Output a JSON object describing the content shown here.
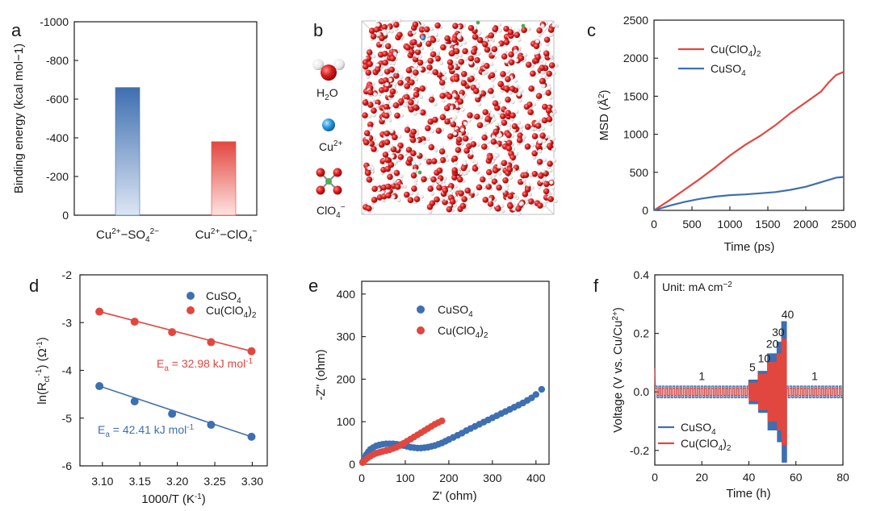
{
  "colors": {
    "blue": "#3e6fb0",
    "red": "#e2473f",
    "light_blue": "#dce6f4",
    "light_red": "#fde3e1"
  },
  "panels": {
    "a": "a",
    "b": "b",
    "c": "c",
    "d": "d",
    "e": "e",
    "f": "f"
  },
  "legend_b": {
    "h2o": "H2O",
    "cu": "Cu2+",
    "clo4": "ClO4−"
  },
  "chart_data": [
    {
      "panel": "a",
      "type": "bar",
      "categories": [
        "Cu2+−SO42−",
        "Cu2+−ClO4−"
      ],
      "values": [
        -660,
        -380
      ],
      "ylabel": "Binding energy (kcal mol−1)",
      "ylim": [
        0,
        -1000
      ],
      "yticks": [
        "0",
        "-200",
        "-400",
        "-600",
        "-800",
        "-1000"
      ],
      "tick_values": [
        0,
        -200,
        -400,
        -600,
        -800,
        -1000
      ],
      "bar_colors": [
        "#3e6fb0",
        "#e2473f"
      ]
    },
    {
      "panel": "c",
      "type": "line",
      "xlabel": "Time (ps)",
      "ylabel": "MSD (Å2)",
      "xlim": [
        0,
        2500
      ],
      "ylim": [
        0,
        2500
      ],
      "xticks": [
        0,
        500,
        1000,
        1500,
        2000,
        2500
      ],
      "yticks": [
        0,
        500,
        1000,
        1500,
        2000,
        2500
      ],
      "series": [
        {
          "name": "Cu(ClO4)2",
          "color": "#e2473f",
          "x": [
            0,
            200,
            400,
            600,
            800,
            1000,
            1200,
            1400,
            1600,
            1800,
            2000,
            2200,
            2300,
            2400,
            2500
          ],
          "y": [
            0,
            130,
            270,
            410,
            560,
            720,
            860,
            980,
            1120,
            1280,
            1420,
            1560,
            1680,
            1780,
            1820
          ]
        },
        {
          "name": "CuSO4",
          "color": "#3e6fb0",
          "x": [
            0,
            200,
            400,
            600,
            800,
            1000,
            1200,
            1400,
            1600,
            1800,
            2000,
            2200,
            2400,
            2500
          ],
          "y": [
            0,
            60,
            110,
            150,
            180,
            200,
            210,
            225,
            240,
            270,
            310,
            370,
            430,
            440
          ]
        }
      ]
    },
    {
      "panel": "d",
      "type": "scatter",
      "xlabel": "1000/T (K−1)",
      "ylabel": "ln(Rct−1) (Ω−1)",
      "xlim": [
        3.07,
        3.32
      ],
      "ylim": [
        -6,
        -2
      ],
      "xticks": [
        "3.10",
        "3.15",
        "3.20",
        "3.25",
        "3.30"
      ],
      "yticks": [
        "-2",
        "-3",
        "-4",
        "-5",
        "-6"
      ],
      "series": [
        {
          "name": "CuSO4",
          "color": "#3e6fb0",
          "x": [
            3.096,
            3.143,
            3.193,
            3.245,
            3.299
          ],
          "y": [
            -4.33,
            -4.65,
            -4.91,
            -5.14,
            -5.39
          ]
        },
        {
          "name": "Cu(ClO4)2",
          "color": "#e2473f",
          "x": [
            3.096,
            3.143,
            3.193,
            3.245,
            3.299
          ],
          "y": [
            -2.77,
            -2.98,
            -3.2,
            -3.41,
            -3.6
          ]
        }
      ],
      "annotations": [
        {
          "text": "Ea = 32.98 kJ mol−1",
          "color": "#e2473f"
        },
        {
          "text": "Ea = 42.41 kJ mol−1",
          "color": "#3e6fb0"
        }
      ]
    },
    {
      "panel": "e",
      "type": "scatter",
      "xlabel": "Z' (ohm)",
      "ylabel": "-Z'' (ohm)",
      "xlim": [
        0,
        430
      ],
      "ylim": [
        0,
        430
      ],
      "xticks": [
        0,
        100,
        200,
        300,
        400
      ],
      "yticks": [
        0,
        100,
        200,
        300,
        400
      ],
      "series": [
        {
          "name": "CuSO4",
          "color": "#3e6fb0",
          "x": [
            2,
            6,
            10,
            15,
            20,
            26,
            33,
            40,
            48,
            56,
            64,
            72,
            80,
            88,
            96,
            104,
            112,
            120,
            128,
            136,
            144,
            152,
            160,
            168,
            176,
            184,
            192,
            200,
            210,
            220,
            230,
            240,
            250,
            260,
            270,
            280,
            290,
            300,
            310,
            320,
            330,
            340,
            350,
            360,
            370,
            380,
            390,
            400,
            413
          ],
          "y": [
            5,
            14,
            22,
            29,
            35,
            39,
            43,
            45,
            47,
            48,
            48,
            48,
            47,
            46,
            44,
            42,
            40,
            39,
            38,
            38,
            39,
            40,
            42,
            44,
            47,
            50,
            54,
            58,
            63,
            68,
            73,
            79,
            84,
            89,
            94,
            99,
            104,
            109,
            114,
            119,
            124,
            129,
            134,
            139,
            144,
            150,
            156,
            164,
            176
          ]
        },
        {
          "name": "Cu(ClO4)2",
          "color": "#e2473f",
          "x": [
            2,
            8,
            14,
            20,
            27,
            34,
            41,
            48,
            56,
            64,
            72,
            80,
            88,
            96,
            104,
            112,
            120,
            128,
            136,
            144,
            152,
            160,
            168,
            176,
            184
          ],
          "y": [
            4,
            10,
            15,
            19,
            23,
            26,
            28,
            30,
            32,
            34,
            37,
            40,
            44,
            49,
            54,
            59,
            64,
            69,
            74,
            79,
            84,
            89,
            94,
            98,
            102
          ]
        }
      ]
    },
    {
      "panel": "f",
      "type": "line",
      "xlabel": "Time (h)",
      "ylabel": "Voltage (V vs. Cu/Cu2+)",
      "xlim": [
        0,
        80
      ],
      "ylim": [
        -0.25,
        0.4
      ],
      "xticks": [
        0,
        20,
        40,
        60,
        80
      ],
      "yticks": [
        "0.4",
        "0.2",
        "0.0",
        "-0.2"
      ],
      "unit_label": "Unit: mA cm−2",
      "current_labels": [
        "1",
        "5",
        "10",
        "20",
        "30",
        "40",
        "1"
      ],
      "segments_h": [
        [
          0,
          40,
          1
        ],
        [
          40,
          44,
          5
        ],
        [
          44,
          48,
          10
        ],
        [
          48,
          52,
          20
        ],
        [
          52,
          54,
          30
        ],
        [
          54,
          56,
          40
        ],
        [
          56,
          80,
          1
        ]
      ],
      "amplitude_V": {
        "CuSO4": {
          "1": 0.02,
          "5": 0.04,
          "10": 0.07,
          "20": 0.13,
          "30": 0.17,
          "40": 0.24
        },
        "Cu(ClO4)2": {
          "1": 0.012,
          "5": 0.03,
          "10": 0.06,
          "20": 0.1,
          "30": 0.13,
          "40": 0.18
        }
      },
      "series": [
        {
          "name": "CuSO4",
          "color": "#3e6fb0"
        },
        {
          "name": "Cu(ClO4)2",
          "color": "#e2473f"
        }
      ]
    }
  ]
}
